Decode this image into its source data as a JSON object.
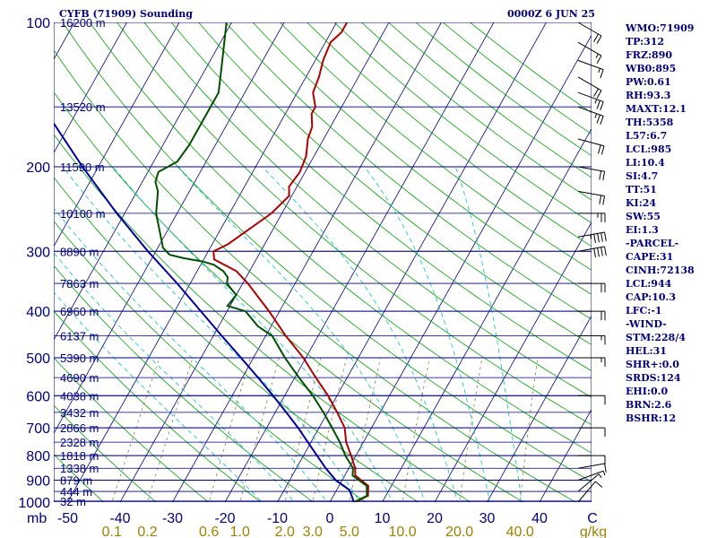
{
  "header": {
    "title": "CYFB (71909) Sounding",
    "datetime": "0000Z  6 JUN 25"
  },
  "indices": [
    "WMO:71909",
    "TP:312",
    "FRZ:890",
    "WB0:895",
    "PW:0.61",
    "RH:93.3",
    "MAXT:12.1",
    "TH:5358",
    "L57:6.7",
    "LCL:985",
    "LI:10.4",
    "SI:4.7",
    "TT:51",
    "KI:24",
    "SW:55",
    "EI:1.3",
    "-PARCEL-",
    "CAPE:31",
    "CINH:72138",
    "LCL:944",
    "CAP:10.3",
    "LFC:-1",
    "-WIND-",
    "STM:228/4",
    "HEL:31",
    "SHR+:0.0",
    "SRDS:124",
    "EHI:0.0",
    "BRN:2.6",
    "BSHR:12"
  ],
  "colors": {
    "axis": "#000080",
    "isobar": "#000080",
    "isotherm": "#000080",
    "dry_adiabat": "#00a000",
    "moist_adiabat": "#00c0c0",
    "mixing_ratio": "#808040",
    "temperature": "#b00000",
    "dewpoint": "#005000",
    "parcel": "#0000a0",
    "wind_barb": "#000000",
    "bottom_labels": "#a08000",
    "background": "#ffffff"
  },
  "chart_data": {
    "type": "line",
    "title": "CYFB (71909) Sounding",
    "subtitle": "0000Z  6 JUN 25",
    "xlabel": "",
    "ylabel": "",
    "y_scale": "log",
    "ylim": [
      1000,
      100
    ],
    "xlim": [
      -50,
      50
    ],
    "grid": true,
    "pressure_ticks": [
      100,
      200,
      300,
      400,
      500,
      600,
      700,
      800,
      900,
      1000
    ],
    "pressure_tick_labels": [
      "100",
      "200",
      "300",
      "400",
      "500",
      "600",
      "700",
      "800",
      "900",
      "1000"
    ],
    "y_unit_label": "mb",
    "temperature_ticks": [
      -50,
      -40,
      -30,
      -20,
      -10,
      0,
      10,
      20,
      30,
      40
    ],
    "temperature_tick_labels": [
      "-50",
      "-40",
      "-30",
      "-20",
      "-10",
      "0",
      "10",
      "20",
      "30",
      "40"
    ],
    "temperature_unit_label": "C",
    "mixing_ratio_ticks": [
      0.1,
      0.2,
      0.6,
      1.0,
      2.0,
      3.0,
      5.0,
      10.0,
      20.0,
      40.0
    ],
    "mixing_ratio_tick_labels": [
      "0.1",
      "0.2",
      "0.6",
      "1.0",
      "2.0",
      "3.0",
      "5.0",
      "10.0",
      "20.0",
      "40.0"
    ],
    "mixing_ratio_unit_label": "g/kg",
    "heights": [
      {
        "p": 995,
        "label": "32 m"
      },
      {
        "p": 950,
        "label": "444 m"
      },
      {
        "p": 900,
        "label": "879 m"
      },
      {
        "p": 850,
        "label": "1338 m"
      },
      {
        "p": 800,
        "label": "1818 m"
      },
      {
        "p": 750,
        "label": "2328 m"
      },
      {
        "p": 700,
        "label": "2866 m"
      },
      {
        "p": 650,
        "label": "3432 m"
      },
      {
        "p": 600,
        "label": "4038 m"
      },
      {
        "p": 550,
        "label": "4690 m"
      },
      {
        "p": 500,
        "label": "5390 m"
      },
      {
        "p": 450,
        "label": "6137 m"
      },
      {
        "p": 400,
        "label": "6960 m"
      },
      {
        "p": 350,
        "label": "7863 m"
      },
      {
        "p": 300,
        "label": "8890 m"
      },
      {
        "p": 250,
        "label": "10100 m"
      },
      {
        "p": 200,
        "label": "11590 m"
      },
      {
        "p": 150,
        "label": "13520 m"
      },
      {
        "p": 100,
        "label": "16200 m"
      }
    ],
    "series": [
      {
        "key": "temperature",
        "points": [
          {
            "p": 1000,
            "t": 4.8
          },
          {
            "p": 970,
            "t": 6.6
          },
          {
            "p": 925,
            "t": 5.6
          },
          {
            "p": 880,
            "t": 2.0
          },
          {
            "p": 850,
            "t": 1.2
          },
          {
            "p": 800,
            "t": -0.9
          },
          {
            "p": 750,
            "t": -3.3
          },
          {
            "p": 700,
            "t": -5.1
          },
          {
            "p": 650,
            "t": -8.2
          },
          {
            "p": 600,
            "t": -11.7
          },
          {
            "p": 550,
            "t": -16.0
          },
          {
            "p": 500,
            "t": -20.5
          },
          {
            "p": 450,
            "t": -26.2
          },
          {
            "p": 400,
            "t": -32.0
          },
          {
            "p": 350,
            "t": -39.0
          },
          {
            "p": 330,
            "t": -42.5
          },
          {
            "p": 312,
            "t": -48.0
          },
          {
            "p": 300,
            "t": -49.0
          },
          {
            "p": 290,
            "t": -47.0
          },
          {
            "p": 250,
            "t": -42.0
          },
          {
            "p": 230,
            "t": -40.5
          },
          {
            "p": 220,
            "t": -41.5
          },
          {
            "p": 205,
            "t": -41.0
          },
          {
            "p": 190,
            "t": -41.5
          },
          {
            "p": 175,
            "t": -43.0
          },
          {
            "p": 165,
            "t": -43.5
          },
          {
            "p": 155,
            "t": -45.0
          },
          {
            "p": 150,
            "t": -45.0
          },
          {
            "p": 140,
            "t": -47.0
          },
          {
            "p": 130,
            "t": -47.5
          },
          {
            "p": 120,
            "t": -48.5
          },
          {
            "p": 110,
            "t": -49.0
          },
          {
            "p": 105,
            "t": -48.0
          },
          {
            "p": 100,
            "t": -48.0
          }
        ]
      },
      {
        "key": "dewpoint",
        "points": [
          {
            "p": 1000,
            "t": 4.6
          },
          {
            "p": 970,
            "t": 6.4
          },
          {
            "p": 925,
            "t": 5.3
          },
          {
            "p": 880,
            "t": 1.5
          },
          {
            "p": 850,
            "t": 0.8
          },
          {
            "p": 800,
            "t": -2.0
          },
          {
            "p": 750,
            "t": -4.5
          },
          {
            "p": 700,
            "t": -7.5
          },
          {
            "p": 650,
            "t": -10.8
          },
          {
            "p": 600,
            "t": -14.6
          },
          {
            "p": 550,
            "t": -19.2
          },
          {
            "p": 500,
            "t": -24.0
          },
          {
            "p": 450,
            "t": -28.8
          },
          {
            "p": 430,
            "t": -32.5
          },
          {
            "p": 400,
            "t": -36.5
          },
          {
            "p": 390,
            "t": -40.5
          },
          {
            "p": 370,
            "t": -40.0
          },
          {
            "p": 350,
            "t": -43.0
          },
          {
            "p": 340,
            "t": -43.5
          },
          {
            "p": 330,
            "t": -45.0
          },
          {
            "p": 320,
            "t": -47.5
          },
          {
            "p": 315,
            "t": -50.0
          },
          {
            "p": 310,
            "t": -54.0
          },
          {
            "p": 305,
            "t": -57.0
          },
          {
            "p": 295,
            "t": -59.0
          },
          {
            "p": 250,
            "t": -64.0
          },
          {
            "p": 225,
            "t": -66.0
          },
          {
            "p": 215,
            "t": -67.5
          },
          {
            "p": 205,
            "t": -68.0
          },
          {
            "p": 195,
            "t": -65.5
          },
          {
            "p": 180,
            "t": -65.0
          },
          {
            "p": 160,
            "t": -65.0
          },
          {
            "p": 150,
            "t": -65.0
          },
          {
            "p": 140,
            "t": -65.0
          },
          {
            "p": 125,
            "t": -67.0
          },
          {
            "p": 100,
            "t": -71.0
          }
        ]
      },
      {
        "key": "parcel",
        "points": [
          {
            "p": 1000,
            "t": 4.6
          },
          {
            "p": 944,
            "t": 2.5
          },
          {
            "p": 900,
            "t": -1.2
          },
          {
            "p": 850,
            "t": -4.4
          },
          {
            "p": 800,
            "t": -7.4
          },
          {
            "p": 750,
            "t": -10.6
          },
          {
            "p": 700,
            "t": -14.0
          },
          {
            "p": 650,
            "t": -17.9
          },
          {
            "p": 600,
            "t": -22.2
          },
          {
            "p": 550,
            "t": -27.0
          },
          {
            "p": 500,
            "t": -32.4
          },
          {
            "p": 450,
            "t": -38.4
          },
          {
            "p": 400,
            "t": -45.0
          },
          {
            "p": 350,
            "t": -52.5
          },
          {
            "p": 300,
            "t": -61.5
          },
          {
            "p": 250,
            "t": -71.5
          },
          {
            "p": 200,
            "t": -83.0
          },
          {
            "p": 150,
            "t": -97.0
          },
          {
            "p": 100,
            "t": -116.0
          }
        ]
      }
    ],
    "wind_barbs": [
      {
        "p": 1000,
        "dir": 220,
        "spd": 10
      },
      {
        "p": 950,
        "dir": 230,
        "spd": 5
      },
      {
        "p": 900,
        "dir": 250,
        "spd": 5
      },
      {
        "p": 850,
        "dir": 260,
        "spd": 10
      },
      {
        "p": 800,
        "dir": 270,
        "spd": 10
      },
      {
        "p": 700,
        "dir": 270,
        "spd": 10
      },
      {
        "p": 600,
        "dir": 270,
        "spd": 10
      },
      {
        "p": 500,
        "dir": 270,
        "spd": 15
      },
      {
        "p": 450,
        "dir": 270,
        "spd": 15
      },
      {
        "p": 400,
        "dir": 270,
        "spd": 20
      },
      {
        "p": 350,
        "dir": 270,
        "spd": 20
      },
      {
        "p": 300,
        "dir": 260,
        "spd": 40
      },
      {
        "p": 280,
        "dir": 260,
        "spd": 45
      },
      {
        "p": 250,
        "dir": 270,
        "spd": 25
      },
      {
        "p": 225,
        "dir": 280,
        "spd": 20
      },
      {
        "p": 200,
        "dir": 280,
        "spd": 20
      },
      {
        "p": 175,
        "dir": 285,
        "spd": 20
      },
      {
        "p": 150,
        "dir": 290,
        "spd": 25
      },
      {
        "p": 140,
        "dir": 290,
        "spd": 25
      },
      {
        "p": 130,
        "dir": 300,
        "spd": 20
      },
      {
        "p": 120,
        "dir": 290,
        "spd": 15
      },
      {
        "p": 110,
        "dir": 300,
        "spd": 15
      },
      {
        "p": 100,
        "dir": 300,
        "spd": 20
      }
    ]
  }
}
